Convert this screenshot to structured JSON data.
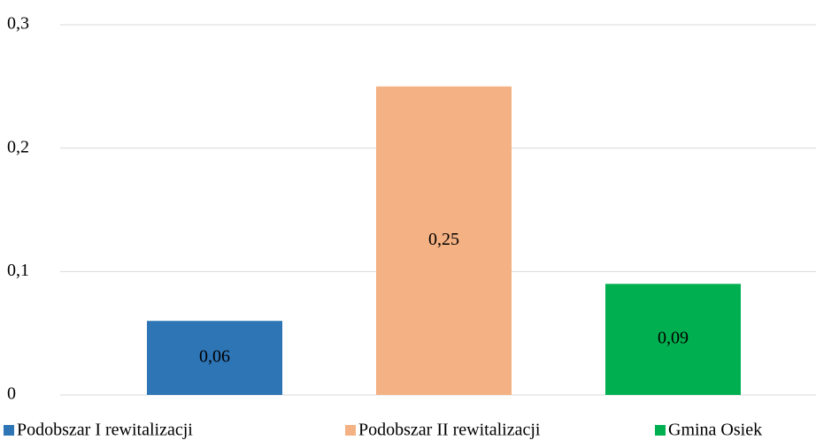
{
  "chart_data": {
    "type": "bar",
    "series": [
      {
        "name": "Podobszar I rewitalizacji",
        "color": "#2e75b6",
        "values": [
          0.06
        ],
        "value_labels": [
          "0,06"
        ]
      },
      {
        "name": "Podobszar II rewitalizacji",
        "color": "#f4b183",
        "values": [
          0.25
        ],
        "value_labels": [
          "0,25"
        ]
      },
      {
        "name": "Gmina Osiek",
        "color": "#00b050",
        "values": [
          0.09
        ],
        "value_labels": [
          "0,09"
        ]
      }
    ],
    "ylim": [
      0,
      0.3
    ],
    "yticks": [
      0,
      {
        "value": 0.1,
        "label": "0,1"
      },
      {
        "value": 0.2,
        "label": "0,2"
      },
      {
        "value": 0.3,
        "label": "0,3"
      }
    ],
    "grid": true,
    "legend": "bottom"
  }
}
